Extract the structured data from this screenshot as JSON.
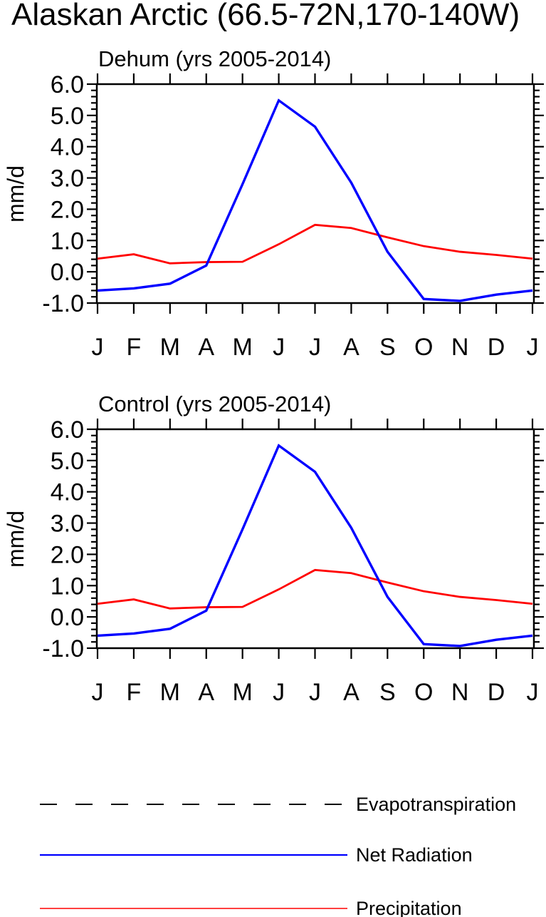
{
  "main_title": "Alaskan Arctic (66.5-72N,170-140W)",
  "chart_data": [
    {
      "type": "line",
      "title": "Dehum (yrs 2005-2014)",
      "ylabel": "mm/d",
      "categories": [
        "J",
        "F",
        "M",
        "A",
        "M",
        "J",
        "J",
        "A",
        "S",
        "O",
        "N",
        "D",
        "J"
      ],
      "ylim": [
        -1.0,
        6.0
      ],
      "ytick_values": [
        6,
        5,
        4,
        3,
        2,
        1,
        0,
        -1
      ],
      "ytick_labels": [
        "6.0",
        "5.0",
        "4.0",
        "3.0",
        "2.0",
        "1.0",
        "0.0",
        "-1.0"
      ],
      "minor_tick_step": 0.2,
      "grid": false,
      "legend_position": "below-figure",
      "series": [
        {
          "name": "Precipitation",
          "color": "#ff0000",
          "values": [
            0.42,
            0.56,
            0.27,
            0.31,
            0.32,
            0.88,
            1.5,
            1.4,
            1.1,
            0.82,
            0.64,
            0.54,
            0.42
          ]
        },
        {
          "name": "Net Radiation",
          "color": "#0000ff",
          "values": [
            -0.6,
            -0.53,
            -0.38,
            0.2,
            2.8,
            5.48,
            4.64,
            2.85,
            0.64,
            -0.87,
            -0.93,
            -0.73,
            -0.6
          ]
        }
      ]
    },
    {
      "type": "line",
      "title": "Control (yrs 2005-2014)",
      "ylabel": "mm/d",
      "categories": [
        "J",
        "F",
        "M",
        "A",
        "M",
        "J",
        "J",
        "A",
        "S",
        "O",
        "N",
        "D",
        "J"
      ],
      "ylim": [
        -1.0,
        6.0
      ],
      "ytick_values": [
        6,
        5,
        4,
        3,
        2,
        1,
        0,
        -1
      ],
      "ytick_labels": [
        "6.0",
        "5.0",
        "4.0",
        "3.0",
        "2.0",
        "1.0",
        "0.0",
        "-1.0"
      ],
      "minor_tick_step": 0.2,
      "grid": false,
      "legend_position": "below-figure",
      "series": [
        {
          "name": "Precipitation",
          "color": "#ff0000",
          "values": [
            0.42,
            0.56,
            0.27,
            0.31,
            0.32,
            0.88,
            1.5,
            1.4,
            1.1,
            0.82,
            0.64,
            0.54,
            0.42
          ]
        },
        {
          "name": "Net Radiation",
          "color": "#0000ff",
          "values": [
            -0.6,
            -0.53,
            -0.38,
            0.2,
            2.8,
            5.48,
            4.64,
            2.85,
            0.64,
            -0.87,
            -0.93,
            -0.73,
            -0.6
          ]
        }
      ]
    }
  ],
  "legend": {
    "entries": [
      {
        "label": "Evapotranspiration",
        "color": "#000000",
        "style": "dashed"
      },
      {
        "label": "Net Radiation",
        "color": "#0000ff",
        "style": "solid"
      },
      {
        "label": "Precipitation",
        "color": "#ff0000",
        "style": "solid"
      }
    ]
  }
}
